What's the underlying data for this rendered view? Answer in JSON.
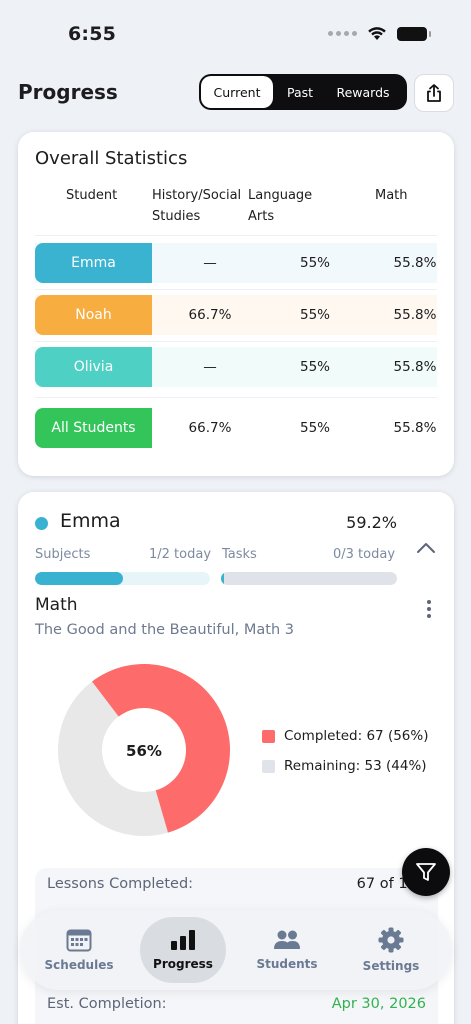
{
  "status_bar": {
    "time": "6:55"
  },
  "header": {
    "title": "Progress",
    "segments": [
      "Current",
      "Past",
      "Rewards"
    ],
    "active_segment": "Current"
  },
  "overall": {
    "title": "Overall Statistics",
    "columns": [
      "Student",
      "History/Social Studies",
      "Language Arts",
      "Math"
    ],
    "rows": [
      {
        "name": "Emma",
        "color": "#3ab3d1",
        "bg": "#f1f9fc",
        "history": "—",
        "language": "55%",
        "math": "55.8%"
      },
      {
        "name": "Noah",
        "color": "#f7ad3f",
        "bg": "#fef8f0",
        "history": "66.7%",
        "language": "55%",
        "math": "55.8%"
      },
      {
        "name": "Olivia",
        "color": "#4fd0c4",
        "bg": "#f1fbfa",
        "history": "—",
        "language": "55%",
        "math": "55.8%"
      },
      {
        "name": "All Students",
        "color": "#33c55a",
        "bg": "#ffffff",
        "history": "66.7%",
        "language": "55%",
        "math": "55.8%"
      }
    ]
  },
  "student_card": {
    "name": "Emma",
    "color": "#38b2d0",
    "percent": "59.2%",
    "subjects_label": "Subjects",
    "subjects_today": "1/2 today",
    "subjects_progress": 0.5,
    "tasks_label": "Tasks",
    "tasks_today": "0/3 today",
    "tasks_progress": 0,
    "subject": "Math",
    "curriculum": "The Good and the Beautiful, Math 3",
    "donut": {
      "center_label": "56%",
      "completed": 67,
      "remaining": 53,
      "completed_color": "#fd6b6b",
      "remaining_color": "#e8e8e8",
      "legend_completed": "Completed: 67 (56%)",
      "legend_remaining": "Remaining: 53 (44%)"
    },
    "info": {
      "lessons_label": "Lessons Completed:",
      "lessons_value": "67 of 120",
      "est_label": "Est. Completion:",
      "est_value": "Apr 30, 2026",
      "est_color": "#33b24f"
    }
  },
  "tabs": [
    {
      "label": "Schedules",
      "active": false
    },
    {
      "label": "Progress",
      "active": true
    },
    {
      "label": "Students",
      "active": false
    },
    {
      "label": "Settings",
      "active": false
    }
  ]
}
